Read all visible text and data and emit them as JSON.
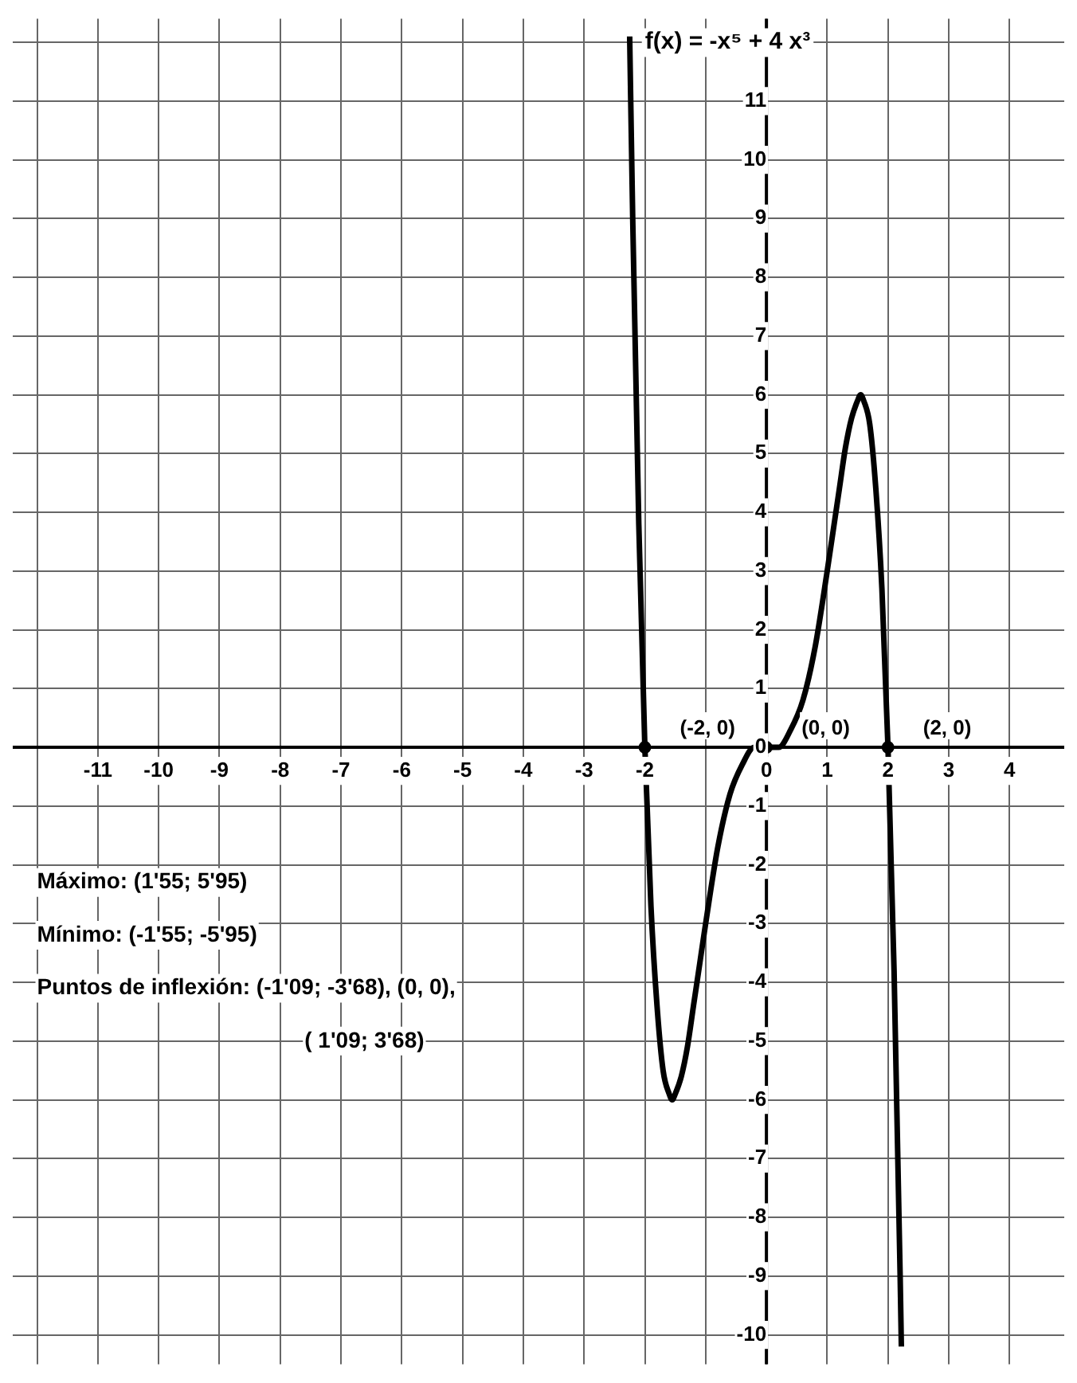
{
  "chart_data": {
    "type": "line",
    "xlim": [
      -12.4,
      4.9
    ],
    "ylim": [
      -10.5,
      12.4
    ],
    "xticks": [
      {
        "value": -12,
        "label": null
      },
      -11,
      -10,
      -9,
      -8,
      -7,
      -6,
      -5,
      -4,
      -3,
      -2,
      {
        "value": -1,
        "label": null
      },
      0,
      1,
      2,
      3,
      4
    ],
    "yticks": [
      -10,
      -9,
      -8,
      -7,
      -6,
      -5,
      -4,
      -3,
      -2,
      -1,
      0,
      1,
      2,
      3,
      4,
      5,
      6,
      7,
      8,
      9,
      10,
      11,
      {
        "value": 12,
        "label": null
      }
    ],
    "grid": true,
    "line_style": "solid",
    "marker": "none",
    "series": [
      {
        "name": "f(x) = -x⁵ + 4 x³",
        "color": "#000000",
        "x": [
          -2.25,
          -2.2,
          -2.1,
          -2.0,
          -1.9,
          -1.8,
          -1.7,
          -1.6,
          -1.55,
          -1.5,
          -1.4,
          -1.3,
          -1.2,
          -1.1,
          -1.0,
          -0.8,
          -0.6,
          -0.4,
          -0.2,
          0,
          0.2,
          0.4,
          0.6,
          0.8,
          1.0,
          1.1,
          1.2,
          1.3,
          1.4,
          1.5,
          1.55,
          1.6,
          1.7,
          1.8,
          1.9,
          2.0,
          2.1,
          2.2,
          2.22
        ],
        "values": [
          12.1,
          9.0,
          3.8,
          0,
          -2.7,
          -4.4,
          -5.5,
          -5.9,
          -6.0,
          -5.9,
          -5.6,
          -5.1,
          -4.4,
          -3.7,
          -3.0,
          -1.7,
          -0.8,
          -0.3,
          0,
          0,
          0,
          0.3,
          0.8,
          1.7,
          3.0,
          3.7,
          4.4,
          5.1,
          5.6,
          5.9,
          6.0,
          5.9,
          5.5,
          4.4,
          2.7,
          0,
          -3.8,
          -9.0,
          -10.2
        ]
      },
      {
        "type": "scatter",
        "marker": "circle",
        "color": "#000000",
        "x": [
          -2,
          0,
          2
        ],
        "values": [
          0,
          0,
          0
        ]
      }
    ],
    "annotations": [
      {
        "text": "(-2, 0)",
        "x": -2,
        "y": 0
      },
      {
        "text": "(0, 0)",
        "x": 0,
        "y": 0
      },
      {
        "text": "(2, 0)",
        "x": 2,
        "y": 0
      },
      "Máximo: (1'55; 5'95)",
      "Mínimo: (-1'55; -5'95)",
      "Puntos de inflexión: (-1'09; -3'68), (0, 0),",
      "( 1'09; 3'68)"
    ]
  }
}
